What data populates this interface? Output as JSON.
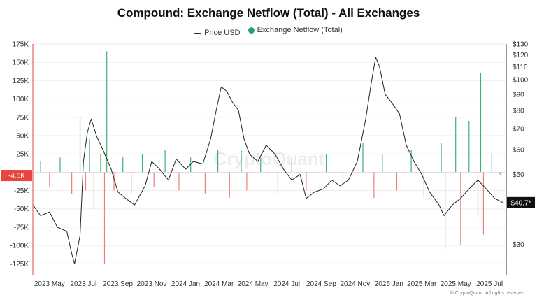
{
  "chart_data": {
    "type": "bar+line",
    "title": "Compound: Exchange Netflow (Total) - All Exchanges",
    "legend": [
      {
        "name": "Price USD",
        "kind": "line",
        "color": "#333333"
      },
      {
        "name": "Exchange Netflow (Total)",
        "kind": "dot",
        "color": "#26a269"
      }
    ],
    "legend_position": "top-center",
    "grid": true,
    "colors": {
      "positive": "#3cb371",
      "negative": "#f07f7f",
      "price": "#222222",
      "marker_current": "#111111",
      "marker_netflow": "#e8453c"
    },
    "x_axis": {
      "ticks": [
        "2023 May",
        "2023 Jul",
        "2023 Sep",
        "2023 Nov",
        "2024 Jan",
        "2024 Mar",
        "2024 May",
        "2024 Jul",
        "2024 Sep",
        "2024 Nov",
        "2025 Jan",
        "2025 Mar",
        "2025 May",
        "2025 Jul"
      ],
      "range": [
        "2023-04-01",
        "2025-07-31"
      ]
    },
    "y_left": {
      "ticks": [
        "175K",
        "150K",
        "125K",
        "100K",
        "75K",
        "50K",
        "25K",
        "-25K",
        "-50K",
        "-75K",
        "-100K",
        "-125K"
      ],
      "range": [
        -140000,
        175000
      ]
    },
    "y_right": {
      "scale": "log",
      "ticks": [
        "$130",
        "$120",
        "$110",
        "$100",
        "$90",
        "$80",
        "$70",
        "$60",
        "$50",
        "$30"
      ],
      "range": [
        24,
        130
      ]
    },
    "current_markers": {
      "netflow": "-4.5K",
      "price": "$40.7*"
    },
    "price_series": [
      {
        "x": "2023-04-01",
        "y": 40
      },
      {
        "x": "2023-04-15",
        "y": 37
      },
      {
        "x": "2023-05-01",
        "y": 38
      },
      {
        "x": "2023-05-15",
        "y": 34
      },
      {
        "x": "2023-06-01",
        "y": 33
      },
      {
        "x": "2023-06-10",
        "y": 28
      },
      {
        "x": "2023-06-15",
        "y": 26
      },
      {
        "x": "2023-06-25",
        "y": 32
      },
      {
        "x": "2023-07-01",
        "y": 55
      },
      {
        "x": "2023-07-08",
        "y": 68
      },
      {
        "x": "2023-07-15",
        "y": 75
      },
      {
        "x": "2023-07-25",
        "y": 66
      },
      {
        "x": "2023-08-05",
        "y": 60
      },
      {
        "x": "2023-08-20",
        "y": 52
      },
      {
        "x": "2023-09-01",
        "y": 44
      },
      {
        "x": "2023-09-15",
        "y": 42
      },
      {
        "x": "2023-10-01",
        "y": 40
      },
      {
        "x": "2023-10-20",
        "y": 46
      },
      {
        "x": "2023-11-01",
        "y": 55
      },
      {
        "x": "2023-11-15",
        "y": 52
      },
      {
        "x": "2023-12-01",
        "y": 48
      },
      {
        "x": "2023-12-15",
        "y": 56
      },
      {
        "x": "2024-01-01",
        "y": 52
      },
      {
        "x": "2024-01-15",
        "y": 55
      },
      {
        "x": "2024-02-01",
        "y": 54
      },
      {
        "x": "2024-02-15",
        "y": 65
      },
      {
        "x": "2024-02-25",
        "y": 80
      },
      {
        "x": "2024-03-05",
        "y": 95
      },
      {
        "x": "2024-03-15",
        "y": 92
      },
      {
        "x": "2024-03-25",
        "y": 85
      },
      {
        "x": "2024-04-05",
        "y": 80
      },
      {
        "x": "2024-04-15",
        "y": 65
      },
      {
        "x": "2024-04-25",
        "y": 58
      },
      {
        "x": "2024-05-10",
        "y": 55
      },
      {
        "x": "2024-05-25",
        "y": 62
      },
      {
        "x": "2024-06-10",
        "y": 58
      },
      {
        "x": "2024-06-25",
        "y": 52
      },
      {
        "x": "2024-07-10",
        "y": 48
      },
      {
        "x": "2024-07-25",
        "y": 50
      },
      {
        "x": "2024-08-05",
        "y": 42
      },
      {
        "x": "2024-08-20",
        "y": 44
      },
      {
        "x": "2024-09-05",
        "y": 45
      },
      {
        "x": "2024-09-20",
        "y": 48
      },
      {
        "x": "2024-10-05",
        "y": 46
      },
      {
        "x": "2024-10-20",
        "y": 48
      },
      {
        "x": "2024-11-05",
        "y": 55
      },
      {
        "x": "2024-11-20",
        "y": 75
      },
      {
        "x": "2024-12-01",
        "y": 100
      },
      {
        "x": "2024-12-08",
        "y": 118
      },
      {
        "x": "2024-12-15",
        "y": 110
      },
      {
        "x": "2024-12-25",
        "y": 90
      },
      {
        "x": "2025-01-05",
        "y": 85
      },
      {
        "x": "2025-01-20",
        "y": 78
      },
      {
        "x": "2025-02-01",
        "y": 62
      },
      {
        "x": "2025-02-15",
        "y": 55
      },
      {
        "x": "2025-03-01",
        "y": 50
      },
      {
        "x": "2025-03-15",
        "y": 44
      },
      {
        "x": "2025-04-01",
        "y": 40
      },
      {
        "x": "2025-04-10",
        "y": 37
      },
      {
        "x": "2025-04-25",
        "y": 40
      },
      {
        "x": "2025-05-10",
        "y": 42
      },
      {
        "x": "2025-05-25",
        "y": 45
      },
      {
        "x": "2025-06-10",
        "y": 48
      },
      {
        "x": "2025-06-25",
        "y": 45
      },
      {
        "x": "2025-07-10",
        "y": 42
      },
      {
        "x": "2025-07-25",
        "y": 40.7
      }
    ],
    "netflow_series": [
      {
        "x": "2023-04-15",
        "y": 15000
      },
      {
        "x": "2023-05-01",
        "y": -20000
      },
      {
        "x": "2023-05-20",
        "y": 20000
      },
      {
        "x": "2023-06-10",
        "y": -30000
      },
      {
        "x": "2023-06-25",
        "y": 75000
      },
      {
        "x": "2023-07-05",
        "y": -25000
      },
      {
        "x": "2023-07-12",
        "y": 45000
      },
      {
        "x": "2023-07-20",
        "y": -50000
      },
      {
        "x": "2023-08-01",
        "y": 25000
      },
      {
        "x": "2023-08-08",
        "y": -125000
      },
      {
        "x": "2023-08-12",
        "y": 165000
      },
      {
        "x": "2023-08-25",
        "y": -25000
      },
      {
        "x": "2023-09-10",
        "y": 20000
      },
      {
        "x": "2023-09-25",
        "y": -30000
      },
      {
        "x": "2023-10-15",
        "y": 25000
      },
      {
        "x": "2023-11-05",
        "y": -20000
      },
      {
        "x": "2023-11-25",
        "y": 30000
      },
      {
        "x": "2023-12-20",
        "y": -25000
      },
      {
        "x": "2024-01-10",
        "y": 20000
      },
      {
        "x": "2024-02-05",
        "y": -30000
      },
      {
        "x": "2024-02-28",
        "y": 30000
      },
      {
        "x": "2024-03-20",
        "y": -35000
      },
      {
        "x": "2024-04-10",
        "y": 30000
      },
      {
        "x": "2024-04-20",
        "y": -25000
      },
      {
        "x": "2024-05-15",
        "y": 20000
      },
      {
        "x": "2024-06-15",
        "y": -30000
      },
      {
        "x": "2024-07-10",
        "y": 20000
      },
      {
        "x": "2024-08-05",
        "y": -25000
      },
      {
        "x": "2024-09-10",
        "y": 25000
      },
      {
        "x": "2024-10-10",
        "y": -20000
      },
      {
        "x": "2024-11-15",
        "y": 40000
      },
      {
        "x": "2024-12-05",
        "y": -35000
      },
      {
        "x": "2024-12-20",
        "y": 25000
      },
      {
        "x": "2025-01-15",
        "y": -25000
      },
      {
        "x": "2025-02-10",
        "y": 30000
      },
      {
        "x": "2025-03-05",
        "y": -35000
      },
      {
        "x": "2025-04-05",
        "y": 40000
      },
      {
        "x": "2025-04-12",
        "y": -105000
      },
      {
        "x": "2025-05-01",
        "y": 75000
      },
      {
        "x": "2025-05-10",
        "y": -100000
      },
      {
        "x": "2025-05-25",
        "y": 70000
      },
      {
        "x": "2025-06-10",
        "y": -60000
      },
      {
        "x": "2025-06-15",
        "y": 135000
      },
      {
        "x": "2025-06-20",
        "y": -85000
      },
      {
        "x": "2025-07-05",
        "y": 25000
      },
      {
        "x": "2025-07-20",
        "y": -4500
      }
    ]
  },
  "watermark": "CryptoQuant",
  "copyright": "© CryptoQuant. All rights reserved"
}
